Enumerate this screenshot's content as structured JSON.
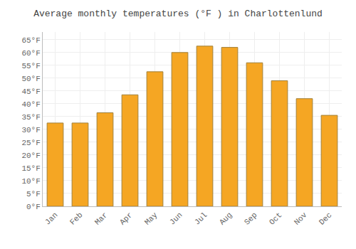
{
  "chart_data": {
    "type": "bar",
    "title": "Average monthly temperatures (°F ) in Charlottenlund",
    "categories": [
      "Jan",
      "Feb",
      "Mar",
      "Apr",
      "May",
      "Jun",
      "Jul",
      "Aug",
      "Sep",
      "Oct",
      "Nov",
      "Dec"
    ],
    "values": [
      32.5,
      32.5,
      36.5,
      43.5,
      52.5,
      60.0,
      62.5,
      62.0,
      56.0,
      49.0,
      42.0,
      35.5
    ],
    "color": "#F5A623",
    "ylim": [
      0,
      68
    ],
    "yticks": [
      {
        "value": 0,
        "label": "0°F"
      },
      {
        "value": 5,
        "label": "5°F"
      },
      {
        "value": 10,
        "label": "10°F"
      },
      {
        "value": 15,
        "label": "15°F"
      },
      {
        "value": 20,
        "label": "20°F"
      },
      {
        "value": 25,
        "label": "25°F"
      },
      {
        "value": 30,
        "label": "30°F"
      },
      {
        "value": 35,
        "label": "35°F"
      },
      {
        "value": 40,
        "label": "40°F"
      },
      {
        "value": 45,
        "label": "45°F"
      },
      {
        "value": 50,
        "label": "50°F"
      },
      {
        "value": 55,
        "label": "55°F"
      },
      {
        "value": 60,
        "label": "60°F"
      },
      {
        "value": 65,
        "label": "65°F"
      }
    ],
    "grid": true
  }
}
